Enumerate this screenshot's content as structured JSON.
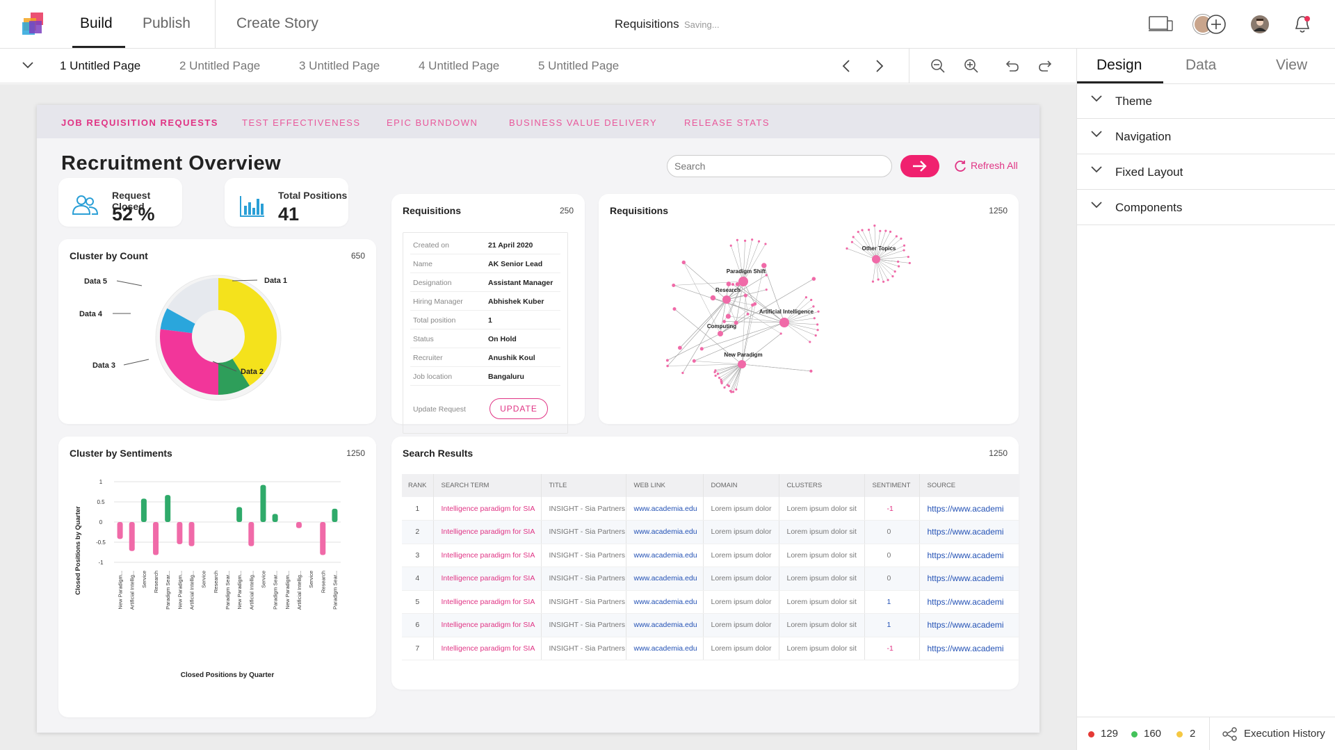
{
  "header": {
    "tabs": [
      {
        "label": "Build"
      },
      {
        "label": "Publish"
      }
    ],
    "create_story": "Create Story",
    "doc_title": "Requisitions",
    "doc_status": "Saving..."
  },
  "pages": [
    {
      "label": "1 Untitled Page"
    },
    {
      "label": "2 Untitled Page"
    },
    {
      "label": "3 Untitled Page"
    },
    {
      "label": "4 Untitled Page"
    },
    {
      "label": "5 Untitled Page"
    }
  ],
  "right_panel": {
    "tabs": [
      {
        "label": "Design"
      },
      {
        "label": "Data"
      },
      {
        "label": "View"
      }
    ],
    "sections": [
      {
        "label": "Theme"
      },
      {
        "label": "Navigation"
      },
      {
        "label": "Fixed Layout"
      },
      {
        "label": "Components"
      }
    ],
    "status": {
      "red": "129",
      "green": "160",
      "yellow": "2",
      "execution_history": "Execution History"
    }
  },
  "colors": {
    "accent_pink": "#e03384",
    "button_pink": "#f0216f",
    "link_blue": "#2452b5",
    "kpi_blue": "#2a9fd6",
    "positive_green": "#2faa6a",
    "negative_pink": "#f06aa8"
  },
  "dashboard": {
    "tabs": [
      {
        "label": "JOB REQUISITION REQUESTS"
      },
      {
        "label": "TEST EFFECTIVENESS"
      },
      {
        "label": "EPIC BURNDOWN"
      },
      {
        "label": "BUSINESS VALUE DELIVERY"
      },
      {
        "label": "RELEASE STATS"
      }
    ],
    "title": "Recruitment Overview",
    "search_placeholder": "Search",
    "refresh_label": "Refresh All",
    "kpis": [
      {
        "label": "Request Closed",
        "value": "52 %",
        "icon": "users-icon"
      },
      {
        "label": "Total Positions",
        "value": "41",
        "icon": "bar-chart-icon"
      }
    ],
    "requisition_card": {
      "title": "Requisitions",
      "count": "250",
      "fields": [
        {
          "key": "Created on",
          "value": "21 April 2020"
        },
        {
          "key": "Name",
          "value": "AK Senior Lead"
        },
        {
          "key": "Designation",
          "value": "Assistant Manager"
        },
        {
          "key": "Hiring Manager",
          "value": "Abhishek Kuber"
        },
        {
          "key": "Total position",
          "value": "1"
        },
        {
          "key": "Status",
          "value": "On Hold"
        },
        {
          "key": "Recruiter",
          "value": "Anushik Koul"
        },
        {
          "key": "Job location",
          "value": "Bangaluru"
        }
      ],
      "update_label": "Update Request",
      "update_button": "UPDATE"
    },
    "network_card": {
      "title": "Requisitions",
      "count": "1250",
      "labels": [
        "Paradigm Shift",
        "Research",
        "Artificial Intelligence",
        "Computing",
        "New Paradigm",
        "Other Topics"
      ]
    },
    "cluster_count": {
      "title": "Cluster by Count",
      "count": "650"
    },
    "cluster_sentiments": {
      "title": "Cluster by Sentiments",
      "count": "1250"
    },
    "search_results": {
      "title": "Search Results",
      "count": "1250",
      "columns": [
        "RANK",
        "SEARCH TERM",
        "TITLE",
        "WEB LINK",
        "DOMAIN",
        "CLUSTERS",
        "SENTIMENT",
        "SOURCE"
      ],
      "rows": [
        [
          "1",
          "Intelligence paradigm for SIA",
          "INSIGHT - Sia Partners",
          "www.academia.edu",
          "Lorem ipsum dolor",
          "Lorem ipsum dolor sit",
          "-1",
          "https://www.academi"
        ],
        [
          "2",
          "Intelligence paradigm for SIA",
          "INSIGHT - Sia Partners",
          "www.academia.edu",
          "Lorem ipsum dolor",
          "Lorem ipsum dolor sit",
          "0",
          "https://www.academi"
        ],
        [
          "3",
          "Intelligence paradigm for SIA",
          "INSIGHT - Sia Partners",
          "www.academia.edu",
          "Lorem ipsum dolor",
          "Lorem ipsum dolor sit",
          "0",
          "https://www.academi"
        ],
        [
          "4",
          "Intelligence paradigm for SIA",
          "INSIGHT - Sia Partners",
          "www.academia.edu",
          "Lorem ipsum dolor",
          "Lorem ipsum dolor sit",
          "0",
          "https://www.academi"
        ],
        [
          "5",
          "Intelligence paradigm for SIA",
          "INSIGHT - Sia Partners",
          "www.academia.edu",
          "Lorem ipsum dolor",
          "Lorem ipsum dolor sit",
          "1",
          "https://www.academi"
        ],
        [
          "6",
          "Intelligence paradigm for SIA",
          "INSIGHT - Sia Partners",
          "www.academia.edu",
          "Lorem ipsum dolor",
          "Lorem ipsum dolor sit",
          "1",
          "https://www.academi"
        ],
        [
          "7",
          "Intelligence paradigm for SIA",
          "INSIGHT - Sia Partners",
          "www.academia.edu",
          "Lorem ipsum dolor",
          "Lorem ipsum dolor sit",
          "-1",
          "https://www.academi"
        ]
      ]
    }
  },
  "chart_data": [
    {
      "type": "pie",
      "title": "Cluster by Count",
      "categories": [
        "Data 1",
        "Data 2",
        "Data 3",
        "Data 4",
        "Data 5"
      ],
      "values": [
        41,
        9,
        27,
        6,
        17
      ],
      "colors": [
        "#f4e21c",
        "#2e9e5a",
        "#f2369a",
        "#2aa6dc",
        "#e6e9ee"
      ]
    },
    {
      "type": "bar",
      "title": "Cluster by Sentiments",
      "xlabel": "Closed Positions by Quarter",
      "ylabel": "Closed Positions by Quarter",
      "ylim": [
        -1,
        1
      ],
      "yticks": [
        "1",
        "0.5",
        "0",
        "-0.5",
        "-1"
      ],
      "categories": [
        "New Paradigm...",
        "Artificial Intellig...",
        "Service",
        "Research",
        "Paradigm Sear...",
        "New Paradigm...",
        "Artificial Intellig...",
        "Service",
        "Research",
        "Paradigm Sear...",
        "New Paradigm...",
        "Artificial Intellig...",
        "Service",
        "Paradigm Sear...",
        "New Paradigm...",
        "Artificial Intellig...",
        "Service",
        "Research",
        "Paradigm Sear..."
      ],
      "values": [
        -0.42,
        -0.72,
        0.58,
        -0.82,
        0.67,
        -0.55,
        -0.6,
        0,
        0,
        0,
        0.37,
        -0.6,
        0.92,
        0.2,
        0,
        -0.15,
        0,
        -0.82,
        0.33
      ]
    }
  ]
}
